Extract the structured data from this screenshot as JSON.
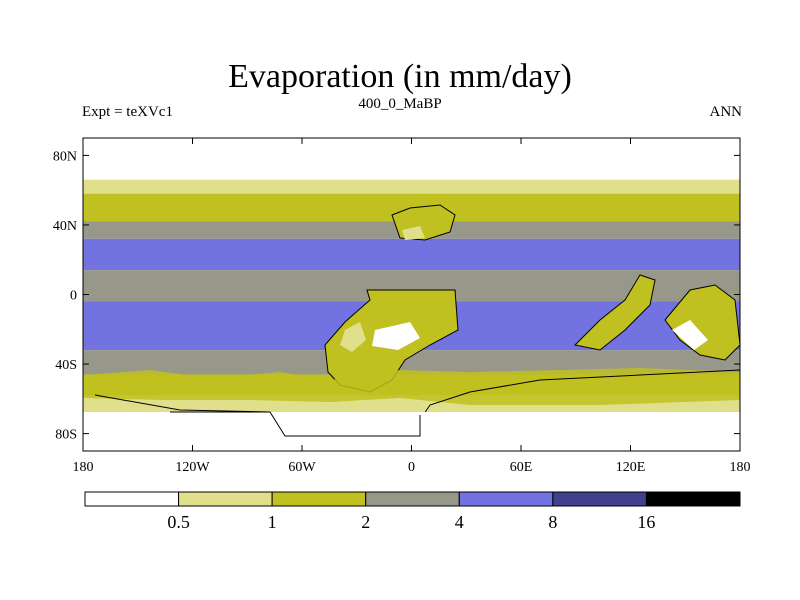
{
  "chart_data": {
    "type": "contour-map",
    "title": "Evaporation (in mm/day)",
    "left_label": "Expt = teXVc1",
    "center_label": "400_0_MaBP",
    "right_label": "ANN",
    "lon_range": [
      -180,
      180
    ],
    "lat_range": [
      -90,
      90
    ],
    "x_ticks": [
      {
        "value": -180,
        "label": "180"
      },
      {
        "value": -120,
        "label": "120W"
      },
      {
        "value": -60,
        "label": "60W"
      },
      {
        "value": 0,
        "label": "0"
      },
      {
        "value": 60,
        "label": "60E"
      },
      {
        "value": 120,
        "label": "120E"
      },
      {
        "value": 180,
        "label": "180"
      }
    ],
    "y_ticks": [
      {
        "value": 80,
        "label": "80N"
      },
      {
        "value": 40,
        "label": "40N"
      },
      {
        "value": 0,
        "label": "0"
      },
      {
        "value": -40,
        "label": "40S"
      },
      {
        "value": -80,
        "label": "80S"
      }
    ],
    "zonal_bands": [
      {
        "lat_from": 90,
        "lat_to": 66,
        "level": 0
      },
      {
        "lat_from": 66,
        "lat_to": 58,
        "level": 1
      },
      {
        "lat_from": 58,
        "lat_to": 42,
        "level": 2
      },
      {
        "lat_from": 42,
        "lat_to": 32,
        "level": 3
      },
      {
        "lat_from": 32,
        "lat_to": 14,
        "level": 4
      },
      {
        "lat_from": 14,
        "lat_to": -4,
        "level": 3
      },
      {
        "lat_from": -4,
        "lat_to": -32,
        "level": 4
      },
      {
        "lat_from": -32,
        "lat_to": -46,
        "level": 3
      },
      {
        "lat_from": -46,
        "lat_to": -58,
        "level": 2
      },
      {
        "lat_from": -58,
        "lat_to": -68,
        "level": 1
      },
      {
        "lat_from": -68,
        "lat_to": -90,
        "level": 0
      }
    ],
    "colorbar": {
      "colors": [
        "#ffffff",
        "#e0e08c",
        "#c0c020",
        "#97978a",
        "#7272e0",
        "#40408c",
        "#000000"
      ],
      "levels": [
        0.5,
        1,
        2,
        4,
        8,
        16
      ]
    }
  }
}
